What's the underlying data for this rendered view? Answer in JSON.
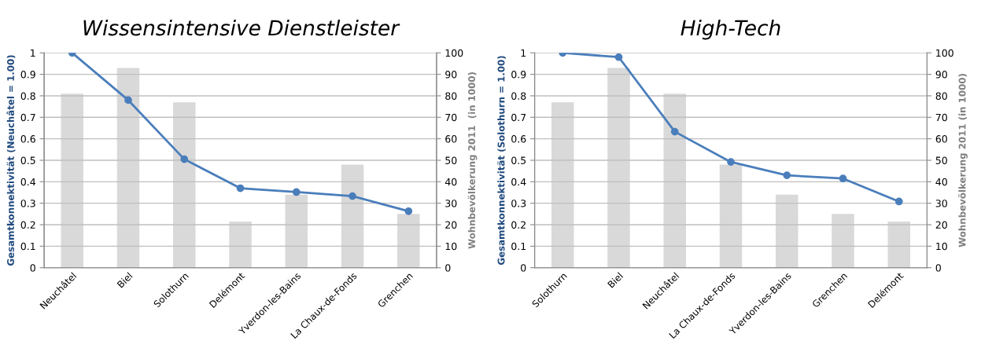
{
  "chart_data": [
    {
      "type": "line",
      "title": "Wissensintensive Dienstleister",
      "ylabel": "Gesamtkonnektivität (Neuchâtel = 1.00)",
      "y2label": "Wohnbevölkerung 2011  (in 1000)",
      "categories": [
        "Neuchâtel",
        "Biel",
        "Solothurn",
        "Delémont",
        "Yverdon-les-Bains",
        "La Chaux-de-Fonds",
        "Grenchen"
      ],
      "series": [
        {
          "type": "bar",
          "axis": "y2",
          "color": "#d9d9d9",
          "values": [
            81,
            93,
            77,
            21.5,
            34,
            48,
            25
          ]
        },
        {
          "axis": "y",
          "color": "#4a7ebb",
          "marker": "circle",
          "values": [
            1,
            0.78,
            0.505,
            0.37,
            0.352,
            0.333,
            0.263
          ]
        }
      ],
      "ylim": [
        0,
        1
      ],
      "yticks": [
        0,
        0.1,
        0.2,
        0.3,
        0.4,
        0.5,
        0.6,
        0.7,
        0.8,
        0.9,
        1
      ],
      "y2lim": [
        0,
        100
      ],
      "y2ticks": [
        0,
        10,
        20,
        30,
        40,
        50,
        60,
        70,
        80,
        90,
        100
      ],
      "grid": "y",
      "legend": false
    },
    {
      "type": "line",
      "title": "High-Tech",
      "ylabel": "Gesamtkonnektivität (Solothurn = 1.00)",
      "y2label": "Wohnbevölkerung 2011 (in 1000)",
      "categories": [
        "Solothurn",
        "Biel",
        "Neuchâtel",
        "La Chaux-de-Fonds",
        "Yverdon-les-Bains",
        "Grenchen",
        "Delémont"
      ],
      "series": [
        {
          "type": "bar",
          "axis": "y2",
          "color": "#d9d9d9",
          "values": [
            77,
            93,
            81,
            48,
            34,
            25,
            21.5
          ]
        },
        {
          "axis": "y",
          "color": "#4a7ebb",
          "marker": "circle",
          "values": [
            1,
            0.98,
            0.633,
            0.492,
            0.43,
            0.415,
            0.308
          ]
        }
      ],
      "ylim": [
        0,
        1
      ],
      "yticks": [
        0,
        0.1,
        0.2,
        0.3,
        0.4,
        0.5,
        0.6,
        0.7,
        0.8,
        0.9,
        1
      ],
      "y2lim": [
        0,
        100
      ],
      "y2ticks": [
        0,
        10,
        20,
        30,
        40,
        50,
        60,
        70,
        80,
        90,
        100
      ],
      "grid": "y",
      "legend": false
    }
  ]
}
